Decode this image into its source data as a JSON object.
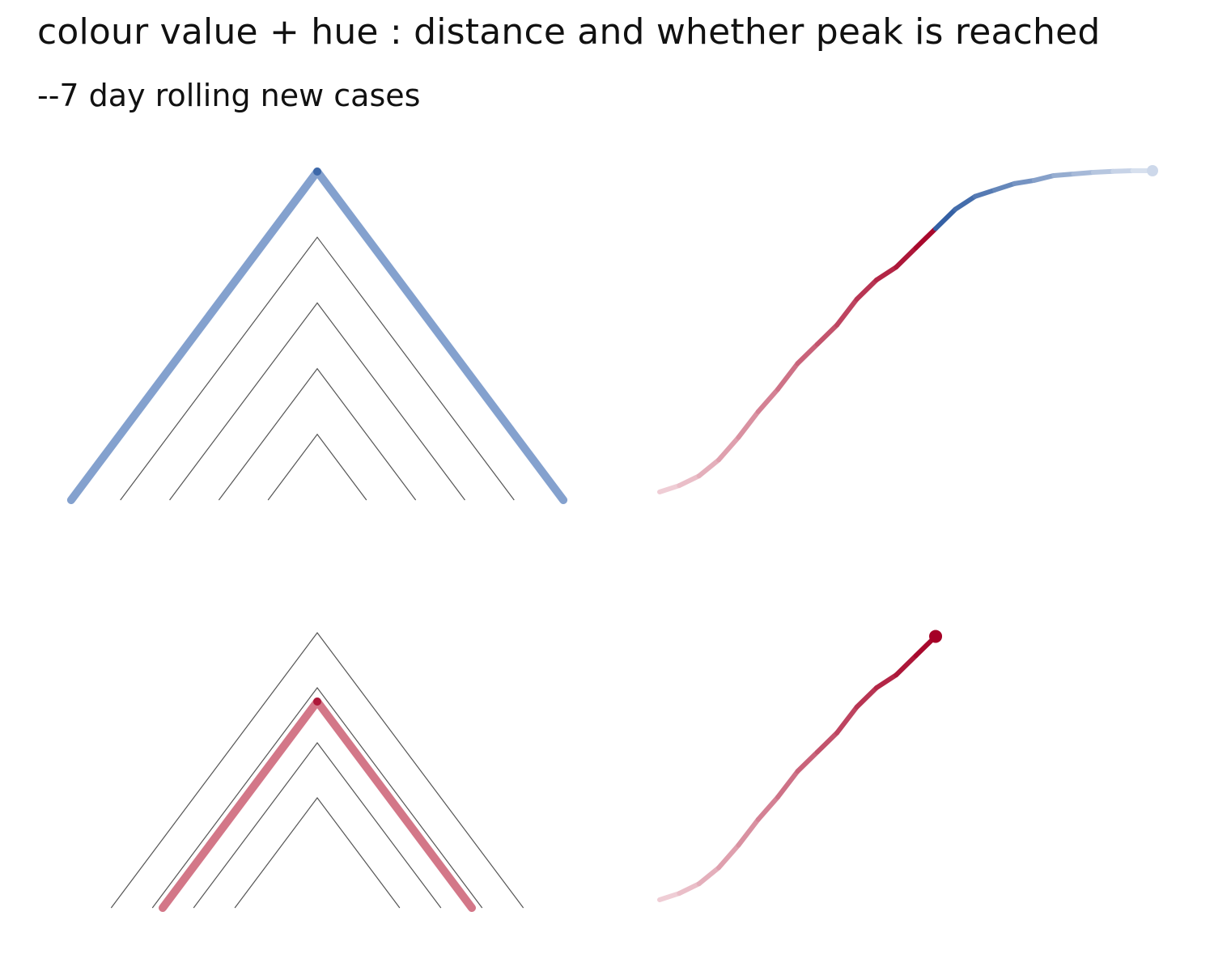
{
  "chart_data": {
    "type": "line",
    "title": "colour value + hue : distance and whether peak is reached",
    "subtitle": "--7 day rolling new cases",
    "grid": false,
    "legend": "none",
    "colors": {
      "not_peaked": "#5b82bd",
      "not_peaked_dark": "#2c5aa0",
      "peaked": "#c44a60",
      "peaked_dark": "#a50026",
      "reference": "#555555"
    },
    "panels": [
      {
        "name": "top-left",
        "kind": "peak-triangles",
        "peak_reached": false,
        "reference_heights": [
          0.8,
          0.6,
          0.4,
          0.2
        ],
        "highlight_height": 1.0
      },
      {
        "name": "top-right",
        "kind": "curve",
        "peak_reached": false,
        "curve_x": [
          0,
          4,
          8,
          12,
          16,
          20,
          24,
          28,
          32,
          36,
          40,
          44,
          48,
          52,
          56,
          60,
          64,
          68,
          72,
          76,
          80,
          84,
          88,
          92,
          96,
          100
        ],
        "curve_y": [
          0.0,
          0.02,
          0.05,
          0.1,
          0.17,
          0.25,
          0.32,
          0.4,
          0.46,
          0.52,
          0.6,
          0.66,
          0.7,
          0.76,
          0.82,
          0.88,
          0.92,
          0.94,
          0.96,
          0.97,
          0.985,
          0.99,
          0.995,
          0.998,
          1.0,
          1.0
        ],
        "peak_index": 26
      },
      {
        "name": "bottom-left",
        "kind": "peak-triangles",
        "peak_reached": true,
        "reference_heights": [
          1.0,
          0.8,
          0.6,
          0.4
        ],
        "highlight_height": 0.75
      },
      {
        "name": "bottom-right",
        "kind": "curve",
        "peak_reached": true,
        "curve_x": [
          0,
          4,
          8,
          12,
          16,
          20,
          24,
          28,
          32,
          36,
          40,
          44,
          48,
          52,
          56
        ],
        "curve_y": [
          0.0,
          0.02,
          0.05,
          0.1,
          0.17,
          0.25,
          0.32,
          0.4,
          0.46,
          0.52,
          0.6,
          0.66,
          0.7,
          0.76,
          0.82
        ],
        "peak_index": 14
      }
    ]
  }
}
